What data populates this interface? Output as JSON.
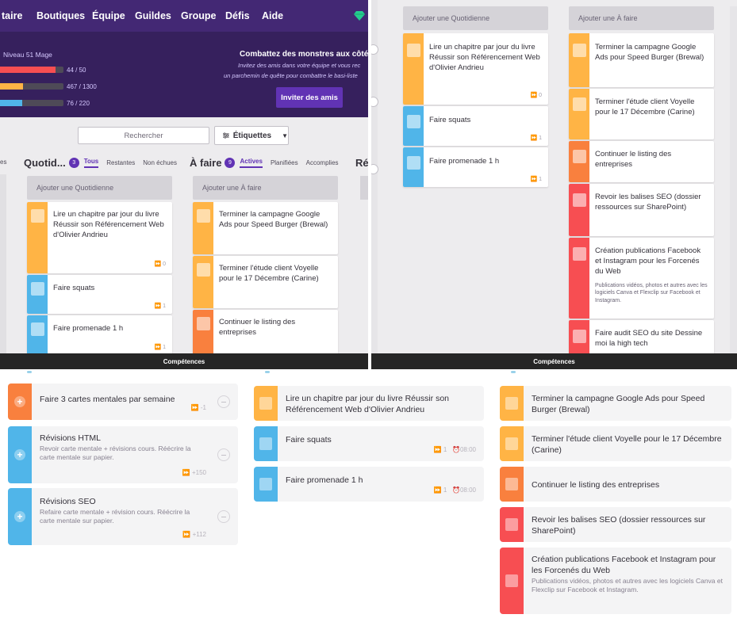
{
  "nav": {
    "items": [
      "taire",
      "Boutiques",
      "Équipe",
      "Guildes",
      "Groupe",
      "Défis",
      "Aide"
    ]
  },
  "hero": {
    "level": "Niveau 51 Mage",
    "bars": [
      {
        "value": "44 / 50",
        "fraction": 0.88,
        "color": "#f74e52"
      },
      {
        "value": "467 / 1300",
        "fraction": 0.36,
        "color": "#ffb445"
      },
      {
        "value": "76 / 220",
        "fraction": 0.35,
        "color": "#50b5e9"
      }
    ],
    "title": "Combattez des monstres aux côtés d'a",
    "sub1": "Invitez des amis dans votre équipe et vous rec",
    "sub2": "un parchemin de quête pour combattre le basi-liste",
    "invite": "Inviter des amis"
  },
  "toolbar": {
    "search_placeholder": "Rechercher",
    "tags": "Étiquettes"
  },
  "col_left_fragment": "es",
  "dailies": {
    "title": "Quotid...",
    "count": "3",
    "filters": [
      "Tous",
      "Restantes",
      "Non échues"
    ],
    "add": "Ajouter une Quotidienne",
    "tasks": [
      {
        "text": "Lire un chapitre par jour du livre Réussir son Référencement Web d'Olivier Andrieu",
        "streak": "⏩ 0",
        "color": "#ffb445"
      },
      {
        "text": "Faire squats",
        "streak": "⏩ 1",
        "color": "#50b5e9"
      },
      {
        "text": "Faire promenade 1 h",
        "streak": "⏩ 1",
        "color": "#50b5e9"
      }
    ]
  },
  "todos": {
    "title": "À faire",
    "count": "9",
    "filters": [
      "Actives",
      "Planifiées",
      "Accomplies"
    ],
    "add": "Ajouter une À faire",
    "tasks": [
      {
        "text": "Terminer la campagne Google Ads pour Speed Burger (Brewal)",
        "color": "#ffb445"
      },
      {
        "text": "Terminer l'étude client Voyelle pour le 17 Décembre (Carine)",
        "color": "#ffb445"
      },
      {
        "text": "Continuer le listing des entreprises",
        "color": "#f9803e"
      },
      {
        "text": "Revoir les balises SEO (dossier ressources sur SharePoint)",
        "color": "#f74e52"
      },
      {
        "text": "Création publications Facebook et Instagram pour les Forcenés du Web",
        "note": "Publications vidéos, photos et autres avec les logiciels Canva et Flexclip sur Facebook et Instagram.",
        "color": "#f74e52"
      },
      {
        "text": "Faire audit SEO du site Dessine moi la high tech",
        "color": "#f74e52"
      }
    ]
  },
  "rewards_fragment": "Ré",
  "skills": "Compétences",
  "habits": [
    {
      "title": "Faire 3 cartes mentales par semaine",
      "note": "",
      "meta": "⏩ -1",
      "color": "#f9803e"
    },
    {
      "title": "Révisions HTML",
      "note": "Revoir carte mentale + révisions cours. Réécrire la carte mentale sur papier.",
      "meta": "⏩ +150",
      "color": "#50b5e9"
    },
    {
      "title": "Révisions SEO",
      "note": "Refaire carte mentale + révision cours. Réécrire la carte mentale sur papier.",
      "meta": "⏩ +112",
      "color": "#50b5e9"
    }
  ],
  "bottom_dailies": [
    {
      "title": "Lire un chapitre par jour du livre Réussir son Référencement Web d'Olivier Andrieu",
      "meta": "",
      "color": "#ffb445"
    },
    {
      "title": "Faire squats",
      "meta": "⏩ 1   ⏰08:00",
      "color": "#50b5e9"
    },
    {
      "title": "Faire promenade 1 h",
      "meta": "⏩ 1   ⏰08:00",
      "color": "#50b5e9"
    }
  ],
  "bottom_todos": [
    {
      "title": "Terminer la campagne Google Ads pour Speed Burger (Brewal)",
      "color": "#ffb445"
    },
    {
      "title": "Terminer l'étude client Voyelle pour le 17 Décembre (Carine)",
      "color": "#ffb445"
    },
    {
      "title": "Continuer le listing des entreprises",
      "color": "#f9803e"
    },
    {
      "title": "Revoir les balises SEO (dossier ressources sur SharePoint)",
      "color": "#f74e52"
    },
    {
      "title": "Création publications Facebook et Instagram pour  les Forcenés du Web",
      "note": "Publications vidéos, photos et autres  avec les logiciels Canva et Flexclip sur Facebook et Instagram.",
      "color": "#f74e52"
    }
  ]
}
